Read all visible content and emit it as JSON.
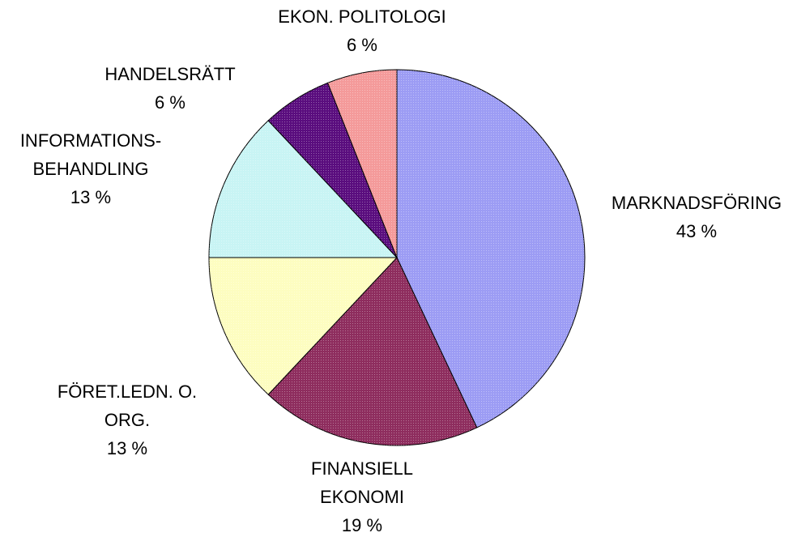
{
  "chart_data": {
    "type": "pie",
    "categories": [
      [
        "MARKNADSFÖRING"
      ],
      [
        "FINANSIELL",
        "EKONOMI"
      ],
      [
        "FÖRET.LEDN. O.",
        "ORG."
      ],
      [
        "INFORMATIONS-",
        "BEHANDLING"
      ],
      [
        "HANDELSRÄTT"
      ],
      [
        "EKON. POLITOLOGI"
      ]
    ],
    "values": [
      43,
      19,
      13,
      13,
      6,
      6
    ],
    "value_labels": [
      "43 %",
      "19 %",
      "13 %",
      "13 %",
      "6 %",
      "6 %"
    ],
    "colors": [
      "#9c9cf4",
      "#8e2d5e",
      "#fdfdc0",
      "#c8f4f4",
      "#5a0d7e",
      "#f49a9a"
    ]
  }
}
